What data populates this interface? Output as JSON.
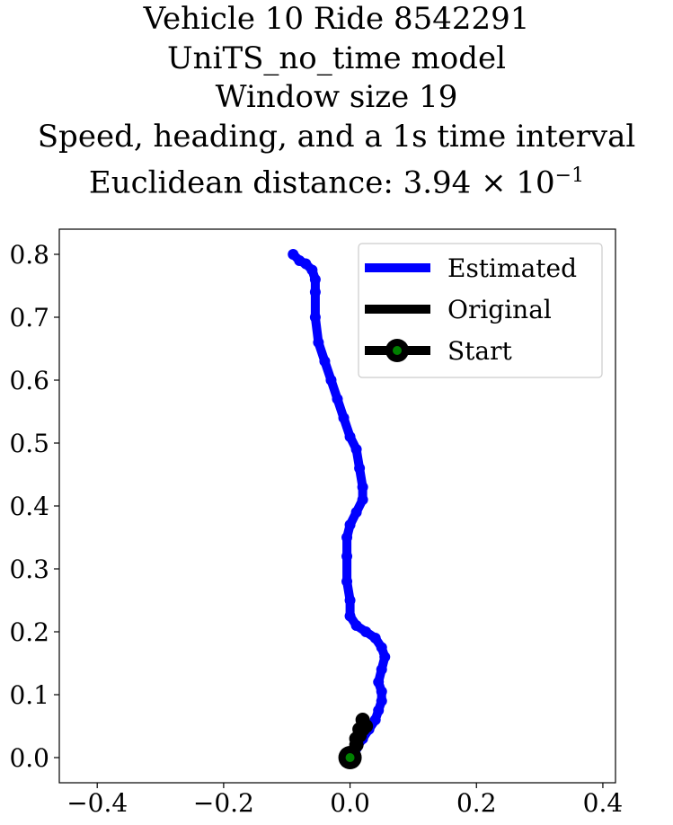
{
  "chart_data": {
    "type": "line",
    "title_lines": [
      "Vehicle 10 Ride 8542291",
      "UniTS_no_time model",
      "Window size 19",
      "Speed, heading, and a 1s time interval"
    ],
    "distance_label": "Euclidean distance:",
    "distance_value": "3.94 × 10",
    "distance_exponent": "−1",
    "xlabel": "",
    "ylabel": "",
    "xlim": [
      -0.46,
      0.42
    ],
    "ylim": [
      -0.04,
      0.84
    ],
    "x_ticks": [
      {
        "value": -0.4,
        "label": "−0.4"
      },
      {
        "value": -0.2,
        "label": "−0.2"
      },
      {
        "value": 0.0,
        "label": "0.0"
      },
      {
        "value": 0.2,
        "label": "0.2"
      },
      {
        "value": 0.4,
        "label": "0.4"
      }
    ],
    "y_ticks": [
      {
        "value": 0.0,
        "label": "0.0"
      },
      {
        "value": 0.1,
        "label": "0.1"
      },
      {
        "value": 0.2,
        "label": "0.2"
      },
      {
        "value": 0.3,
        "label": "0.3"
      },
      {
        "value": 0.4,
        "label": "0.4"
      },
      {
        "value": 0.5,
        "label": "0.5"
      },
      {
        "value": 0.6,
        "label": "0.6"
      },
      {
        "value": 0.7,
        "label": "0.7"
      },
      {
        "value": 0.8,
        "label": "0.8"
      }
    ],
    "legend_position": "upper right",
    "series": [
      {
        "name": "Estimated",
        "color": "#0000ff",
        "points": [
          [
            0.0,
            0.0
          ],
          [
            0.01,
            0.015
          ],
          [
            0.02,
            0.03
          ],
          [
            0.03,
            0.045
          ],
          [
            0.04,
            0.06
          ],
          [
            0.045,
            0.075
          ],
          [
            0.05,
            0.09
          ],
          [
            0.05,
            0.105
          ],
          [
            0.045,
            0.12
          ],
          [
            0.05,
            0.14
          ],
          [
            0.055,
            0.16
          ],
          [
            0.05,
            0.175
          ],
          [
            0.04,
            0.19
          ],
          [
            0.025,
            0.2
          ],
          [
            0.01,
            0.21
          ],
          [
            0.0,
            0.225
          ],
          [
            0.0,
            0.25
          ],
          [
            -0.005,
            0.28
          ],
          [
            -0.005,
            0.32
          ],
          [
            -0.005,
            0.35
          ],
          [
            0.0,
            0.37
          ],
          [
            0.01,
            0.39
          ],
          [
            0.02,
            0.41
          ],
          [
            0.02,
            0.43
          ],
          [
            0.015,
            0.46
          ],
          [
            0.01,
            0.49
          ],
          [
            0.0,
            0.51
          ],
          [
            -0.01,
            0.54
          ],
          [
            -0.02,
            0.57
          ],
          [
            -0.03,
            0.6
          ],
          [
            -0.04,
            0.63
          ],
          [
            -0.05,
            0.66
          ],
          [
            -0.055,
            0.7
          ],
          [
            -0.055,
            0.74
          ],
          [
            -0.055,
            0.76
          ],
          [
            -0.06,
            0.775
          ],
          [
            -0.07,
            0.785
          ],
          [
            -0.08,
            0.79
          ],
          [
            -0.09,
            0.8
          ]
        ]
      },
      {
        "name": "Original",
        "color": "#000000",
        "points": [
          [
            0.0,
            0.0
          ],
          [
            0.01,
            0.02
          ],
          [
            0.015,
            0.035
          ],
          [
            0.02,
            0.045
          ],
          [
            0.025,
            0.05
          ],
          [
            0.02,
            0.06
          ],
          [
            0.015,
            0.045
          ],
          [
            0.01,
            0.03
          ]
        ]
      }
    ],
    "start": {
      "name": "Start",
      "x": 0.0,
      "y": 0.0,
      "edge_color": "#000000",
      "face_color": "#008000"
    }
  }
}
